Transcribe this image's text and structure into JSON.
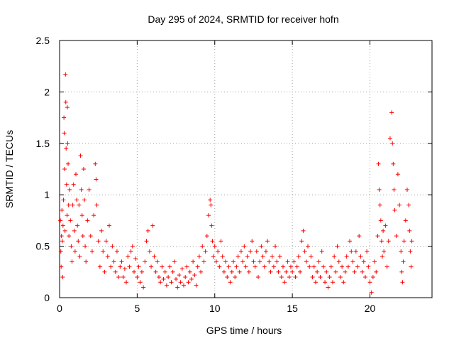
{
  "chart_data": {
    "type": "scatter",
    "title": "Day 295 of 2024, SRMTID for receiver hofn",
    "xlabel": "GPS time / hours",
    "ylabel": "SRMTID / TECUs",
    "xlim": [
      0,
      24
    ],
    "ylim": [
      0,
      2.5
    ],
    "xticks": [
      0,
      5,
      10,
      15,
      20
    ],
    "xtick_labels": [
      "0",
      "5",
      "10",
      "15",
      "20"
    ],
    "yticks": [
      0,
      0.5,
      1,
      1.5,
      2,
      2.5
    ],
    "ytick_labels": [
      "0",
      "0.5",
      "1",
      "1.5",
      "2",
      "2.5"
    ],
    "grid": true,
    "marker": "+",
    "marker_color": "#ff0000",
    "series": [
      {
        "name": "SRMTID",
        "points": [
          [
            0.05,
            0.75
          ],
          [
            0.08,
            0.45
          ],
          [
            0.1,
            0.3
          ],
          [
            0.12,
            0.6
          ],
          [
            0.15,
            0.85
          ],
          [
            0.18,
            0.55
          ],
          [
            0.2,
            0.2
          ],
          [
            0.22,
            0.7
          ],
          [
            0.25,
            0.95
          ],
          [
            0.28,
            1.75
          ],
          [
            0.3,
            1.6
          ],
          [
            0.32,
            1.25
          ],
          [
            0.35,
            0.65
          ],
          [
            0.38,
            2.17
          ],
          [
            0.4,
            1.9
          ],
          [
            0.42,
            1.45
          ],
          [
            0.45,
            1.1
          ],
          [
            0.48,
            0.8
          ],
          [
            0.5,
            1.85
          ],
          [
            0.52,
            1.5
          ],
          [
            0.55,
            1.3
          ],
          [
            0.58,
            0.9
          ],
          [
            0.6,
            0.6
          ],
          [
            0.65,
            1.05
          ],
          [
            0.7,
            0.75
          ],
          [
            0.75,
            0.5
          ],
          [
            0.8,
            0.35
          ],
          [
            0.85,
            0.9
          ],
          [
            0.9,
            1.1
          ],
          [
            0.95,
            0.65
          ],
          [
            1.0,
            0.45
          ],
          [
            1.05,
            1.2
          ],
          [
            1.1,
            0.95
          ],
          [
            1.15,
            0.7
          ],
          [
            1.2,
            0.55
          ],
          [
            1.25,
            0.9
          ],
          [
            1.3,
            0.4
          ],
          [
            1.35,
            1.38
          ],
          [
            1.4,
            1.05
          ],
          [
            1.45,
            0.8
          ],
          [
            1.5,
            0.6
          ],
          [
            1.55,
            1.25
          ],
          [
            1.6,
            0.95
          ],
          [
            1.65,
            0.5
          ],
          [
            1.7,
            0.35
          ],
          [
            1.8,
            0.75
          ],
          [
            1.9,
            1.05
          ],
          [
            2.0,
            0.6
          ],
          [
            2.1,
            0.45
          ],
          [
            2.2,
            0.8
          ],
          [
            2.3,
            1.3
          ],
          [
            2.35,
            1.15
          ],
          [
            2.4,
            0.9
          ],
          [
            2.5,
            0.55
          ],
          [
            2.6,
            0.3
          ],
          [
            2.7,
            0.65
          ],
          [
            2.8,
            0.45
          ],
          [
            2.9,
            0.25
          ],
          [
            3.0,
            0.55
          ],
          [
            3.1,
            0.4
          ],
          [
            3.2,
            0.7
          ],
          [
            3.3,
            0.3
          ],
          [
            3.4,
            0.5
          ],
          [
            3.5,
            0.35
          ],
          [
            3.6,
            0.25
          ],
          [
            3.7,
            0.45
          ],
          [
            3.8,
            0.2
          ],
          [
            3.9,
            0.3
          ],
          [
            4.0,
            0.35
          ],
          [
            4.1,
            0.2
          ],
          [
            4.2,
            0.28
          ],
          [
            4.3,
            0.15
          ],
          [
            4.4,
            0.4
          ],
          [
            4.5,
            0.3
          ],
          [
            4.6,
            0.45
          ],
          [
            4.7,
            0.5
          ],
          [
            4.8,
            0.25
          ],
          [
            4.9,
            0.38
          ],
          [
            5.0,
            0.2
          ],
          [
            5.1,
            0.3
          ],
          [
            5.2,
            0.15
          ],
          [
            5.3,
            0.25
          ],
          [
            5.4,
            0.1
          ],
          [
            5.5,
            0.35
          ],
          [
            5.6,
            0.55
          ],
          [
            5.7,
            0.65
          ],
          [
            5.8,
            0.45
          ],
          [
            5.9,
            0.3
          ],
          [
            6.0,
            0.7
          ],
          [
            6.1,
            0.4
          ],
          [
            6.2,
            0.25
          ],
          [
            6.3,
            0.35
          ],
          [
            6.4,
            0.2
          ],
          [
            6.5,
            0.15
          ],
          [
            6.6,
            0.3
          ],
          [
            6.7,
            0.18
          ],
          [
            6.8,
            0.25
          ],
          [
            6.9,
            0.12
          ],
          [
            7.0,
            0.2
          ],
          [
            7.1,
            0.3
          ],
          [
            7.2,
            0.15
          ],
          [
            7.3,
            0.25
          ],
          [
            7.4,
            0.35
          ],
          [
            7.5,
            0.18
          ],
          [
            7.6,
            0.1
          ],
          [
            7.7,
            0.22
          ],
          [
            7.8,
            0.15
          ],
          [
            7.9,
            0.28
          ],
          [
            8.0,
            0.12
          ],
          [
            8.1,
            0.2
          ],
          [
            8.2,
            0.3
          ],
          [
            8.3,
            0.15
          ],
          [
            8.4,
            0.25
          ],
          [
            8.5,
            0.18
          ],
          [
            8.6,
            0.35
          ],
          [
            8.7,
            0.22
          ],
          [
            8.8,
            0.12
          ],
          [
            8.9,
            0.3
          ],
          [
            9.0,
            0.4
          ],
          [
            9.1,
            0.25
          ],
          [
            9.2,
            0.5
          ],
          [
            9.3,
            0.35
          ],
          [
            9.4,
            0.45
          ],
          [
            9.5,
            0.6
          ],
          [
            9.6,
            0.8
          ],
          [
            9.7,
            0.95
          ],
          [
            9.75,
            0.9
          ],
          [
            9.8,
            0.7
          ],
          [
            9.85,
            0.55
          ],
          [
            9.9,
            0.4
          ],
          [
            10.0,
            0.5
          ],
          [
            10.1,
            0.35
          ],
          [
            10.2,
            0.45
          ],
          [
            10.3,
            0.3
          ],
          [
            10.4,
            0.55
          ],
          [
            10.5,
            0.4
          ],
          [
            10.6,
            0.25
          ],
          [
            10.7,
            0.35
          ],
          [
            10.8,
            0.2
          ],
          [
            10.9,
            0.3
          ],
          [
            11.0,
            0.15
          ],
          [
            11.1,
            0.25
          ],
          [
            11.2,
            0.35
          ],
          [
            11.3,
            0.2
          ],
          [
            11.4,
            0.3
          ],
          [
            11.5,
            0.4
          ],
          [
            11.6,
            0.25
          ],
          [
            11.7,
            0.45
          ],
          [
            11.8,
            0.35
          ],
          [
            11.9,
            0.5
          ],
          [
            12.0,
            0.3
          ],
          [
            12.1,
            0.4
          ],
          [
            12.2,
            0.25
          ],
          [
            12.3,
            0.45
          ],
          [
            12.4,
            0.55
          ],
          [
            12.5,
            0.35
          ],
          [
            12.6,
            0.3
          ],
          [
            12.7,
            0.45
          ],
          [
            12.8,
            0.2
          ],
          [
            12.9,
            0.35
          ],
          [
            13.0,
            0.5
          ],
          [
            13.1,
            0.4
          ],
          [
            13.2,
            0.3
          ],
          [
            13.3,
            0.45
          ],
          [
            13.4,
            0.55
          ],
          [
            13.5,
            0.35
          ],
          [
            13.6,
            0.25
          ],
          [
            13.7,
            0.4
          ],
          [
            13.8,
            0.3
          ],
          [
            13.9,
            0.5
          ],
          [
            14.0,
            0.35
          ],
          [
            14.1,
            0.25
          ],
          [
            14.2,
            0.4
          ],
          [
            14.3,
            0.2
          ],
          [
            14.4,
            0.3
          ],
          [
            14.5,
            0.15
          ],
          [
            14.6,
            0.25
          ],
          [
            14.7,
            0.35
          ],
          [
            14.8,
            0.2
          ],
          [
            14.9,
            0.3
          ],
          [
            15.0,
            0.25
          ],
          [
            15.1,
            0.35
          ],
          [
            15.2,
            0.2
          ],
          [
            15.3,
            0.3
          ],
          [
            15.4,
            0.4
          ],
          [
            15.5,
            0.25
          ],
          [
            15.6,
            0.55
          ],
          [
            15.7,
            0.65
          ],
          [
            15.8,
            0.45
          ],
          [
            15.9,
            0.35
          ],
          [
            16.0,
            0.5
          ],
          [
            16.1,
            0.3
          ],
          [
            16.2,
            0.4
          ],
          [
            16.3,
            0.2
          ],
          [
            16.4,
            0.3
          ],
          [
            16.5,
            0.15
          ],
          [
            16.6,
            0.25
          ],
          [
            16.7,
            0.35
          ],
          [
            16.8,
            0.2
          ],
          [
            16.9,
            0.45
          ],
          [
            17.0,
            0.3
          ],
          [
            17.1,
            0.15
          ],
          [
            17.2,
            0.25
          ],
          [
            17.3,
            0.1
          ],
          [
            17.4,
            0.2
          ],
          [
            17.5,
            0.3
          ],
          [
            17.6,
            0.15
          ],
          [
            17.7,
            0.4
          ],
          [
            17.8,
            0.25
          ],
          [
            17.9,
            0.5
          ],
          [
            18.0,
            0.35
          ],
          [
            18.1,
            0.2
          ],
          [
            18.2,
            0.3
          ],
          [
            18.3,
            0.15
          ],
          [
            18.4,
            0.25
          ],
          [
            18.5,
            0.4
          ],
          [
            18.6,
            0.3
          ],
          [
            18.7,
            0.55
          ],
          [
            18.8,
            0.45
          ],
          [
            18.9,
            0.35
          ],
          [
            19.0,
            0.25
          ],
          [
            19.1,
            0.45
          ],
          [
            19.2,
            0.3
          ],
          [
            19.3,
            0.6
          ],
          [
            19.4,
            0.4
          ],
          [
            19.5,
            0.25
          ],
          [
            19.6,
            0.35
          ],
          [
            19.7,
            0.2
          ],
          [
            19.8,
            0.45
          ],
          [
            19.9,
            0.3
          ],
          [
            20.0,
            0.15
          ],
          [
            20.1,
            0.05
          ],
          [
            20.2,
            0.2
          ],
          [
            20.3,
            0.35
          ],
          [
            20.4,
            0.25
          ],
          [
            20.5,
            0.6
          ],
          [
            20.55,
            1.3
          ],
          [
            20.6,
            1.05
          ],
          [
            20.65,
            0.9
          ],
          [
            20.7,
            0.75
          ],
          [
            20.75,
            0.55
          ],
          [
            20.8,
            0.4
          ],
          [
            20.85,
            0.65
          ],
          [
            20.9,
            0.45
          ],
          [
            21.0,
            0.7
          ],
          [
            21.1,
            0.3
          ],
          [
            21.2,
            0.55
          ],
          [
            21.3,
            1.55
          ],
          [
            21.4,
            1.8
          ],
          [
            21.45,
            1.5
          ],
          [
            21.5,
            1.3
          ],
          [
            21.55,
            1.05
          ],
          [
            21.6,
            0.85
          ],
          [
            21.7,
            0.6
          ],
          [
            21.8,
            1.2
          ],
          [
            21.9,
            0.9
          ],
          [
            22.0,
            0.45
          ],
          [
            22.05,
            0.25
          ],
          [
            22.1,
            0.15
          ],
          [
            22.15,
            0.35
          ],
          [
            22.2,
            0.55
          ],
          [
            22.3,
            0.75
          ],
          [
            22.4,
            1.05
          ],
          [
            22.5,
            0.9
          ],
          [
            22.55,
            0.65
          ],
          [
            22.6,
            0.45
          ],
          [
            22.65,
            0.3
          ],
          [
            22.7,
            0.55
          ]
        ]
      }
    ]
  }
}
